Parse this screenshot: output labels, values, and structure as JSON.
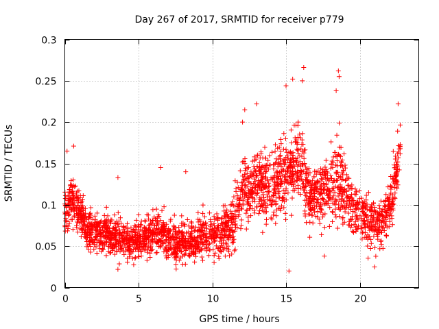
{
  "chart_data": {
    "type": "scatter",
    "title": "Day 267 of 2017, SRMTID for receiver p779",
    "xlabel": "GPS time / hours",
    "ylabel": "SRMTID / TECUs",
    "xlim": [
      0,
      24
    ],
    "ylim": [
      0,
      0.3
    ],
    "grid": true,
    "marker": "+",
    "series_color": "#ff0000",
    "x_ticks": [
      {
        "value": 0,
        "label": "0"
      },
      {
        "value": 5,
        "label": "5"
      },
      {
        "value": 10,
        "label": "10"
      },
      {
        "value": 15,
        "label": "15"
      },
      {
        "value": 20,
        "label": "20"
      }
    ],
    "y_ticks": [
      {
        "value": 0,
        "label": "0"
      },
      {
        "value": 0.05,
        "label": "0.05"
      },
      {
        "value": 0.1,
        "label": "0.1"
      },
      {
        "value": 0.15,
        "label": "0.15"
      },
      {
        "value": 0.2,
        "label": "0.2"
      },
      {
        "value": 0.25,
        "label": "0.25"
      },
      {
        "value": 0.3,
        "label": "0.3"
      }
    ],
    "series": [
      {
        "name": "SRMTID",
        "points_per_hour": 120,
        "x_start": 0.0,
        "x_end": 22.75,
        "envelope": [
          {
            "x": 0.0,
            "center": 0.09,
            "spread": 0.025
          },
          {
            "x": 0.4,
            "center": 0.11,
            "spread": 0.03
          },
          {
            "x": 0.9,
            "center": 0.095,
            "spread": 0.025
          },
          {
            "x": 1.5,
            "center": 0.07,
            "spread": 0.02
          },
          {
            "x": 2.5,
            "center": 0.065,
            "spread": 0.022
          },
          {
            "x": 3.5,
            "center": 0.06,
            "spread": 0.022
          },
          {
            "x": 4.5,
            "center": 0.055,
            "spread": 0.02
          },
          {
            "x": 5.5,
            "center": 0.06,
            "spread": 0.022
          },
          {
            "x": 6.5,
            "center": 0.065,
            "spread": 0.025
          },
          {
            "x": 7.5,
            "center": 0.055,
            "spread": 0.022
          },
          {
            "x": 8.5,
            "center": 0.055,
            "spread": 0.022
          },
          {
            "x": 9.5,
            "center": 0.065,
            "spread": 0.022
          },
          {
            "x": 10.5,
            "center": 0.065,
            "spread": 0.025
          },
          {
            "x": 11.5,
            "center": 0.08,
            "spread": 0.03
          },
          {
            "x": 12.0,
            "center": 0.11,
            "spread": 0.035
          },
          {
            "x": 13.0,
            "center": 0.13,
            "spread": 0.035
          },
          {
            "x": 14.0,
            "center": 0.12,
            "spread": 0.035
          },
          {
            "x": 15.0,
            "center": 0.14,
            "spread": 0.04
          },
          {
            "x": 16.0,
            "center": 0.155,
            "spread": 0.045
          },
          {
            "x": 16.5,
            "center": 0.11,
            "spread": 0.03
          },
          {
            "x": 17.5,
            "center": 0.115,
            "spread": 0.035
          },
          {
            "x": 18.5,
            "center": 0.13,
            "spread": 0.04
          },
          {
            "x": 19.5,
            "center": 0.095,
            "spread": 0.03
          },
          {
            "x": 20.5,
            "center": 0.085,
            "spread": 0.03
          },
          {
            "x": 21.5,
            "center": 0.075,
            "spread": 0.025
          },
          {
            "x": 22.2,
            "center": 0.11,
            "spread": 0.03
          },
          {
            "x": 22.75,
            "center": 0.17,
            "spread": 0.03
          }
        ],
        "outliers": [
          {
            "x": 0.6,
            "y": 0.171
          },
          {
            "x": 0.15,
            "y": 0.165
          },
          {
            "x": 12.05,
            "y": 0.2
          },
          {
            "x": 12.2,
            "y": 0.215
          },
          {
            "x": 13.0,
            "y": 0.222
          },
          {
            "x": 15.0,
            "y": 0.244
          },
          {
            "x": 15.45,
            "y": 0.252
          },
          {
            "x": 15.2,
            "y": 0.02
          },
          {
            "x": 16.2,
            "y": 0.266
          },
          {
            "x": 16.1,
            "y": 0.25
          },
          {
            "x": 18.55,
            "y": 0.262
          },
          {
            "x": 18.6,
            "y": 0.255
          },
          {
            "x": 18.4,
            "y": 0.238
          },
          {
            "x": 17.6,
            "y": 0.038
          },
          {
            "x": 21.0,
            "y": 0.025
          },
          {
            "x": 22.6,
            "y": 0.222
          },
          {
            "x": 8.2,
            "y": 0.14
          },
          {
            "x": 6.5,
            "y": 0.145
          },
          {
            "x": 3.6,
            "y": 0.133
          }
        ]
      }
    ]
  }
}
